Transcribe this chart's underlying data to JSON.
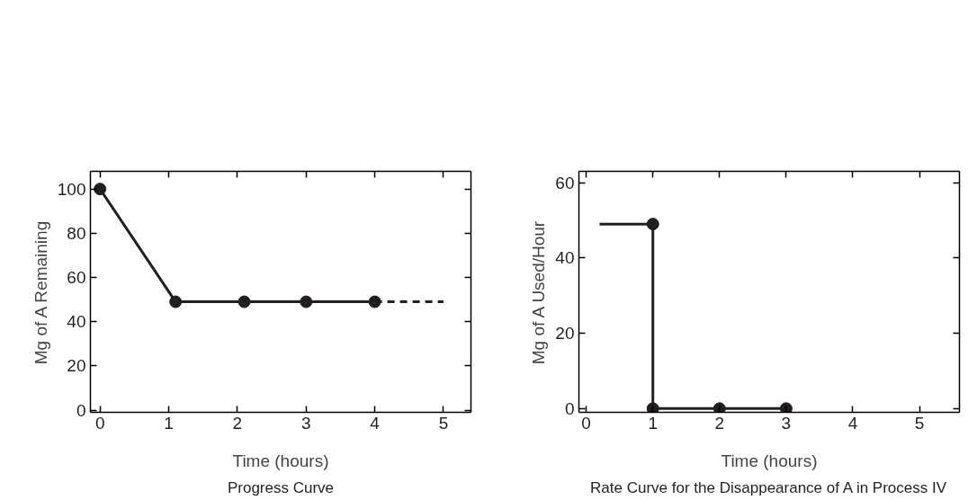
{
  "chart_data": [
    {
      "type": "line",
      "title": "Progress Curve",
      "xlabel": "Time (hours)",
      "ylabel": "Mg of A Remaining",
      "xlim": [
        -0.14,
        5.4
      ],
      "ylim": [
        -1,
        108
      ],
      "xticks": [
        0,
        1,
        2,
        3,
        4,
        5
      ],
      "yticks": [
        0,
        20,
        40,
        60,
        80,
        100
      ],
      "grid": false,
      "series": [
        {
          "color": "#231f20",
          "x": [
            0,
            1.1,
            2.1,
            3,
            4
          ],
          "values": [
            100,
            49,
            49,
            49,
            49
          ],
          "marker": "circle",
          "line_style": "solid"
        },
        {
          "color": "#231f20",
          "x": [
            4,
            5
          ],
          "values": [
            49,
            49
          ],
          "marker": "none",
          "line_style": "dashed"
        }
      ]
    },
    {
      "type": "line",
      "title": "Rate Curve for the Disappearance of A in Process IV",
      "xlabel": "Time (hours)",
      "ylabel": "Mg of A Used/Hour",
      "xlim": [
        -0.11,
        5.6
      ],
      "ylim": [
        -1,
        63
      ],
      "xticks": [
        0,
        1,
        2,
        3,
        4,
        5
      ],
      "yticks": [
        0,
        20,
        40,
        60
      ],
      "grid": false,
      "series": [
        {
          "color": "#231f20",
          "x": [
            0.2,
            1,
            1,
            3
          ],
          "values": [
            49,
            49,
            0,
            0
          ],
          "marker": "none",
          "line_style": "solid"
        },
        {
          "type": "scatter",
          "color": "#231f20",
          "x": [
            1,
            1,
            2,
            3
          ],
          "values": [
            49,
            0,
            0,
            0
          ],
          "marker": "circle"
        }
      ]
    }
  ]
}
